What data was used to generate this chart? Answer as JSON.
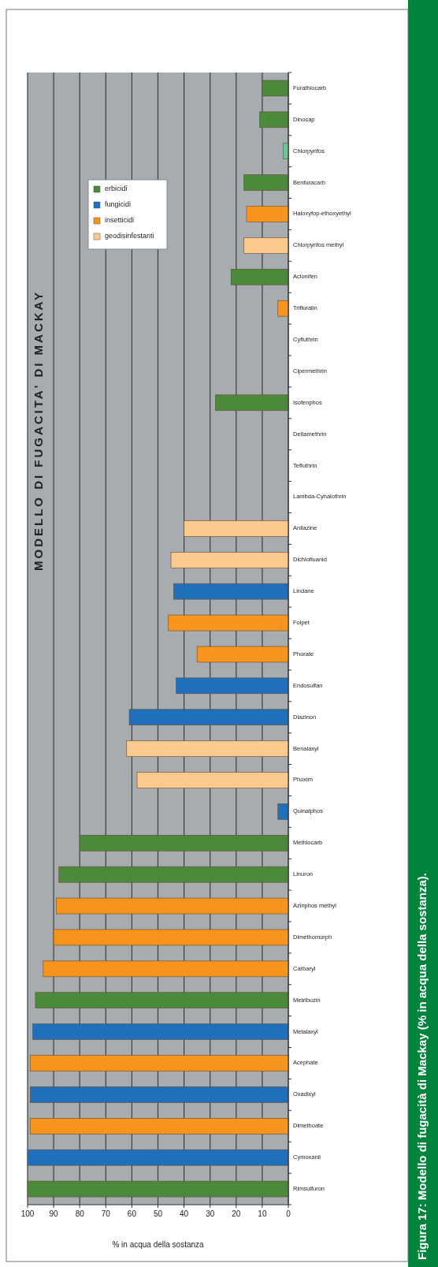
{
  "chart_data": {
    "type": "bar",
    "orientation": "horizontal",
    "title": "MODELLO DI FUGACITA' DI MACKAY",
    "xlabel": "% in acqua della sostanza",
    "categories": [
      "Furathiocarb",
      "Dinocap",
      "Chlorpyrifos",
      "Benfuracarb",
      "Haloxyfop-ethoxyethyl",
      "Chlorpyrifos methyl",
      "Aclonifen",
      "Trifluralin",
      "Cyfluthrin",
      "Cipermethrin",
      "Isofenphos",
      "Deltamethrin",
      "Tefluthrin",
      "Lambda-Cyhalothrin",
      "Anilazine",
      "Dichlofluanid",
      "Lindane",
      "Folpet",
      "Phorate",
      "Endosulfan",
      "Diazinon",
      "Benalaxyl",
      "Phoxim",
      "Quinalphos",
      "Methiocarb",
      "Linuron",
      "Azinphos methyl",
      "Dimethomorph",
      "Carbaryl",
      "Metribuzin",
      "Metalaxyl",
      "Acephate",
      "Oxadixyl",
      "Dimethoate",
      "Cymoxanil",
      "Rimsulfuron"
    ],
    "series": [
      {
        "name": "erbicidi",
        "color": "#4b8a3b",
        "values": [
          10,
          11,
          null,
          17,
          null,
          null,
          22,
          null,
          null,
          null,
          28,
          null,
          null,
          null,
          null,
          null,
          null,
          null,
          null,
          null,
          null,
          null,
          null,
          null,
          80,
          88,
          null,
          null,
          null,
          97,
          null,
          null,
          null,
          null,
          null,
          100
        ]
      },
      {
        "name": "fungicidi",
        "color": "#1f6fba",
        "values": [
          null,
          null,
          null,
          null,
          null,
          null,
          null,
          null,
          null,
          null,
          null,
          null,
          null,
          null,
          null,
          null,
          44,
          null,
          null,
          43,
          61,
          null,
          null,
          4,
          null,
          null,
          null,
          null,
          null,
          null,
          98,
          null,
          99,
          null,
          100,
          null
        ]
      },
      {
        "name": "insetticidi",
        "color": "#f7941d",
        "values": [
          null,
          null,
          null,
          null,
          16,
          null,
          null,
          4,
          null,
          null,
          null,
          null,
          null,
          null,
          null,
          null,
          null,
          46,
          35,
          null,
          null,
          null,
          null,
          null,
          null,
          null,
          89,
          90,
          94,
          null,
          null,
          99,
          null,
          99,
          null,
          null
        ]
      },
      {
        "name": "geodisinfestanti",
        "color": "#fcc98f",
        "values": [
          null,
          null,
          null,
          null,
          null,
          17,
          null,
          null,
          null,
          null,
          null,
          null,
          null,
          null,
          40,
          45,
          null,
          null,
          null,
          null,
          null,
          62,
          58,
          null,
          null,
          null,
          null,
          null,
          null,
          null,
          null,
          null,
          null,
          null,
          null,
          null
        ]
      },
      {
        "color": "#6cc39a",
        "values": [
          null,
          null,
          2,
          null,
          null,
          null,
          null,
          null,
          null,
          null,
          null,
          null,
          null,
          null,
          null,
          null,
          null,
          null,
          null,
          null,
          null,
          null,
          null,
          null,
          null,
          null,
          null,
          null,
          null,
          null,
          null,
          null,
          null,
          null,
          null,
          null
        ]
      }
    ],
    "xlim": [
      100,
      0
    ],
    "xticks": [
      100,
      90,
      80,
      70,
      60,
      50,
      40,
      30,
      20,
      10,
      0
    ],
    "grid": "x",
    "legend": "top left",
    "annotations": [
      "Figura 17: Modello di fugacità di Mackay (% in acqua della sostanza)."
    ]
  }
}
